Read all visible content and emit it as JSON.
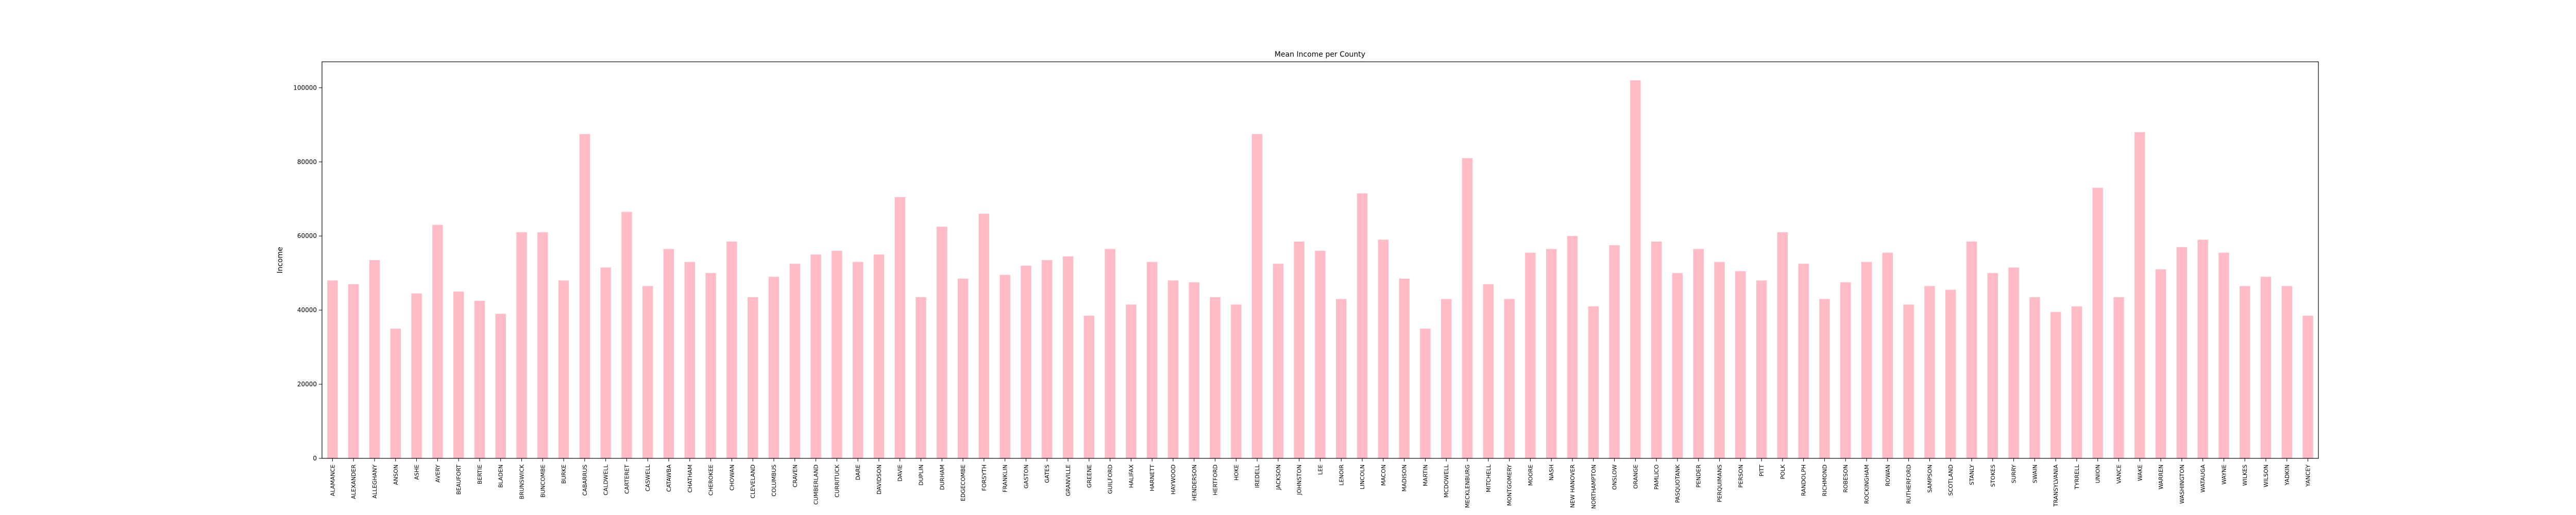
{
  "chart_data": {
    "type": "bar",
    "title": "Mean Income per County",
    "xlabel": "",
    "ylabel": "Income",
    "ylim": [
      0,
      107000
    ],
    "yticks": [
      0,
      20000,
      40000,
      60000,
      80000,
      100000
    ],
    "grid": false,
    "bar_color": "#ffbbc6",
    "categories": [
      "ALAMANCE",
      "ALEXANDER",
      "ALLEGHANY",
      "ANSON",
      "ASHE",
      "AVERY",
      "BEAUFORT",
      "BERTIE",
      "BLADEN",
      "BRUNSWICK",
      "BUNCOMBE",
      "BURKE",
      "CABARRUS",
      "CALDWELL",
      "CARTERET",
      "CASWELL",
      "CATAWBA",
      "CHATHAM",
      "CHEROKEE",
      "CHOWAN",
      "CLEVELAND",
      "COLUMBUS",
      "CRAVEN",
      "CUMBERLAND",
      "CURRITUCK",
      "DARE",
      "DAVIDSON",
      "DAVIE",
      "DUPLIN",
      "DURHAM",
      "EDGECOMBE",
      "FORSYTH",
      "FRANKLIN",
      "GASTON",
      "GATES",
      "GRANVILLE",
      "GREENE",
      "GUILFORD",
      "HALIFAX",
      "HARNETT",
      "HAYWOOD",
      "HENDERSON",
      "HERTFORD",
      "HOKE",
      "IREDELL",
      "JACKSON",
      "JOHNSTON",
      "LEE",
      "LENOIR",
      "LINCOLN",
      "MACON",
      "MADISON",
      "MARTIN",
      "MCDOWELL",
      "MECKLENBURG",
      "MITCHELL",
      "MONTGOMERY",
      "MOORE",
      "NASH",
      "NEW HANOVER",
      "NORTHAMPTON",
      "ONSLOW",
      "ORANGE",
      "PAMLICO",
      "PASQUOTANK",
      "PENDER",
      "PERQUIMANS",
      "PERSON",
      "PITT",
      "POLK",
      "RANDOLPH",
      "RICHMOND",
      "ROBESON",
      "ROCKINGHAM",
      "ROWAN",
      "RUTHERFORD",
      "SAMPSON",
      "SCOTLAND",
      "STANLY",
      "STOKES",
      "SURRY",
      "SWAIN",
      "TRANSYLVANIA",
      "TYRRELL",
      "UNION",
      "VANCE",
      "WAKE",
      "WARREN",
      "WASHINGTON",
      "WATAUGA",
      "WAYNE",
      "WILKES",
      "WILSON",
      "YADKIN",
      "YANCEY"
    ],
    "values": [
      48000,
      47000,
      53500,
      35000,
      44500,
      63000,
      45000,
      42500,
      39000,
      61000,
      61000,
      48000,
      87500,
      51500,
      66500,
      46500,
      56500,
      53000,
      50000,
      58500,
      43500,
      49000,
      52500,
      55000,
      56000,
      53000,
      55000,
      70500,
      43500,
      62500,
      48500,
      66000,
      49500,
      52000,
      53500,
      54500,
      38500,
      56500,
      41500,
      53000,
      48000,
      47500,
      43500,
      41500,
      87500,
      52500,
      58500,
      56000,
      43000,
      71500,
      59000,
      48500,
      35000,
      43000,
      81000,
      47000,
      43000,
      55500,
      56500,
      60000,
      41000,
      57500,
      102000,
      58500,
      50000,
      56500,
      53000,
      50500,
      48000,
      61000,
      52500,
      43000,
      47500,
      53000,
      55500,
      41500,
      46500,
      45500,
      58500,
      50000,
      51500,
      43500,
      39500,
      41000,
      73000,
      43500,
      88000,
      51000,
      57000,
      59000,
      55500,
      46500,
      49000,
      46500,
      38500
    ]
  }
}
